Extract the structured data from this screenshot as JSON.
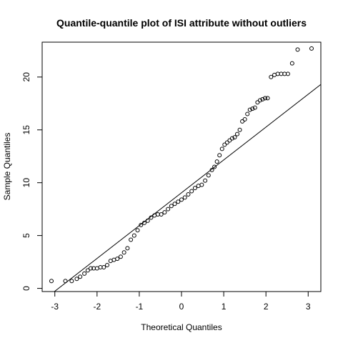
{
  "chart_data": {
    "type": "scatter",
    "title": "Quantile-quantile plot of ISI attribute without outliers",
    "xlabel": "Theoretical Quantiles",
    "ylabel": "Sample Quantiles",
    "xlim": [
      -3.3,
      3.3
    ],
    "ylim": [
      -0.3,
      23.3
    ],
    "x_ticks": [
      -3,
      -2,
      -1,
      0,
      1,
      2,
      3
    ],
    "y_ticks": [
      0,
      5,
      10,
      15,
      20
    ],
    "grid": false,
    "legend": "none",
    "reference_line": {
      "x": [
        -3.3,
        3.3
      ],
      "y": [
        -1.2,
        19.3
      ]
    },
    "points": {
      "x": [
        -3.08,
        -2.75,
        -2.6,
        -2.48,
        -2.4,
        -2.3,
        -2.22,
        -2.15,
        -2.08,
        -2.0,
        -1.92,
        -1.84,
        -1.76,
        -1.68,
        -1.6,
        -1.52,
        -1.44,
        -1.36,
        -1.28,
        -1.2,
        -1.12,
        -1.04,
        -0.96,
        -0.88,
        -0.8,
        -0.72,
        -0.64,
        -0.56,
        -0.48,
        -0.4,
        -0.32,
        -0.24,
        -0.16,
        -0.08,
        0.0,
        0.08,
        0.16,
        0.24,
        0.32,
        0.4,
        0.48,
        0.56,
        0.64,
        0.72,
        0.78,
        0.84,
        0.9,
        0.96,
        1.02,
        1.08,
        1.14,
        1.2,
        1.26,
        1.32,
        1.38,
        1.44,
        1.5,
        1.56,
        1.62,
        1.68,
        1.74,
        1.8,
        1.86,
        1.92,
        1.98,
        2.04,
        2.12,
        2.2,
        2.28,
        2.36,
        2.44,
        2.52,
        2.62,
        2.75,
        3.08
      ],
      "y": [
        0.7,
        0.7,
        0.7,
        0.9,
        1.1,
        1.4,
        1.7,
        1.9,
        1.9,
        1.9,
        2.0,
        2.0,
        2.2,
        2.6,
        2.7,
        2.8,
        3.0,
        3.4,
        3.8,
        4.6,
        5.0,
        5.5,
        6.0,
        6.2,
        6.4,
        6.7,
        6.9,
        7.0,
        7.0,
        7.2,
        7.5,
        7.8,
        8.0,
        8.2,
        8.4,
        8.6,
        8.9,
        9.2,
        9.5,
        9.7,
        9.8,
        10.2,
        10.7,
        11.2,
        11.5,
        12.0,
        12.6,
        13.2,
        13.6,
        13.8,
        14.0,
        14.2,
        14.3,
        14.6,
        15.0,
        15.8,
        16.0,
        16.5,
        16.9,
        17.0,
        17.1,
        17.6,
        17.8,
        17.9,
        18.0,
        18.0,
        20.0,
        20.2,
        20.3,
        20.3,
        20.3,
        20.3,
        21.3,
        22.6,
        22.7
      ]
    }
  }
}
